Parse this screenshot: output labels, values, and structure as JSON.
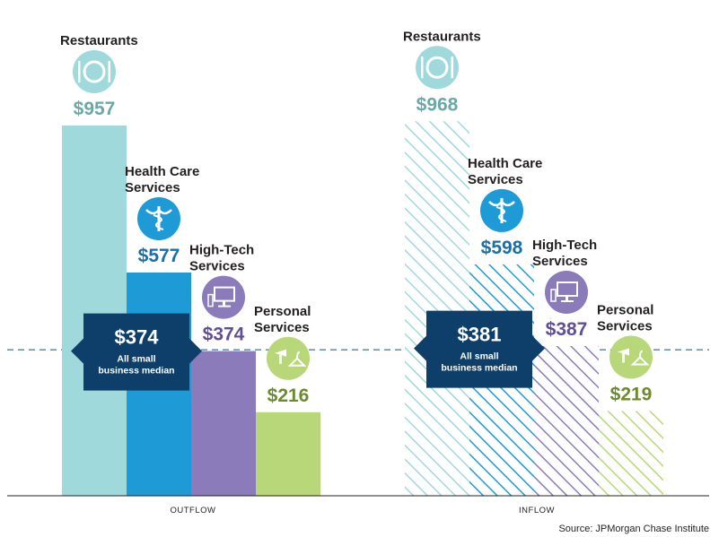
{
  "chart_data": {
    "type": "bar",
    "ylim": [
      0,
      1000
    ],
    "median_line": true,
    "colors": {
      "Restaurants": "#9fd9db",
      "Health Care Services": "#1e9ad6",
      "High-Tech Services": "#8b7bbb",
      "Personal Services": "#b7d779",
      "value_Restaurants": "#6aa8a6",
      "value_Health Care Services": "#1a6fa8",
      "value_High-Tech Services": "#5f4f96",
      "value_Personal Services": "#6c8a2f",
      "median_box": "#0e3f6b",
      "dashed_line": "#1b4f7a"
    },
    "groups": [
      {
        "name": "OUTFLOW",
        "style": "solid",
        "median": {
          "value": 374,
          "label": "$374",
          "sub_lines": [
            "All small",
            "business median"
          ]
        },
        "bars": [
          {
            "category": "Restaurants",
            "label_lines": [
              "Restaurants"
            ],
            "value": 957,
            "value_label": "$957",
            "icon": "plate-utensils-icon"
          },
          {
            "category": "Health Care Services",
            "label_lines": [
              "Health Care",
              "Services"
            ],
            "value": 577,
            "value_label": "$577",
            "icon": "caduceus-icon"
          },
          {
            "category": "High-Tech Services",
            "label_lines": [
              "High-Tech",
              "Services"
            ],
            "value": 374,
            "value_label": "$374",
            "icon": "computer-monitor-icon"
          },
          {
            "category": "Personal Services",
            "label_lines": [
              "Personal",
              "Services"
            ],
            "value": 216,
            "value_label": "$216",
            "icon": "hairdryer-hanger-icon"
          }
        ]
      },
      {
        "name": "INFLOW",
        "style": "hatched",
        "median": {
          "value": 381,
          "label": "$381",
          "sub_lines": [
            "All small",
            "business median"
          ]
        },
        "bars": [
          {
            "category": "Restaurants",
            "label_lines": [
              "Restaurants"
            ],
            "value": 968,
            "value_label": "$968",
            "icon": "plate-utensils-icon"
          },
          {
            "category": "Health Care Services",
            "label_lines": [
              "Health Care",
              "Services"
            ],
            "value": 598,
            "value_label": "$598",
            "icon": "caduceus-icon"
          },
          {
            "category": "High-Tech Services",
            "label_lines": [
              "High-Tech",
              "Services"
            ],
            "value": 387,
            "value_label": "$387",
            "icon": "computer-monitor-icon"
          },
          {
            "category": "Personal Services",
            "label_lines": [
              "Personal",
              "Services"
            ],
            "value": 219,
            "value_label": "$219",
            "icon": "hairdryer-hanger-icon"
          }
        ]
      }
    ],
    "source": "Source: JPMorgan Chase Institute"
  }
}
